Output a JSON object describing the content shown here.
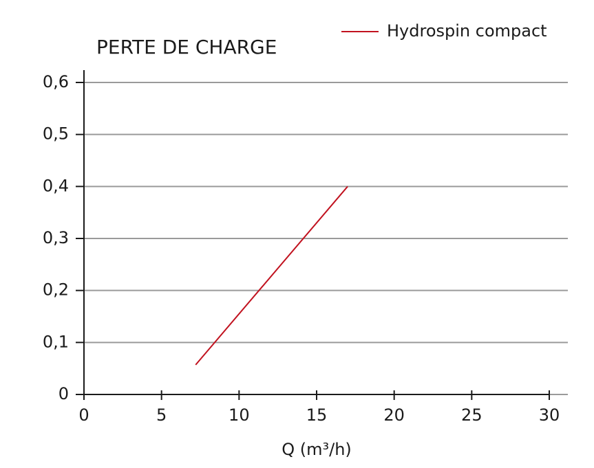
{
  "chart_data": {
    "type": "line",
    "title": "PERTE DE CHARGE",
    "x_label": "Q (m³/h)",
    "x": [
      7.2,
      17
    ],
    "series": [
      {
        "name": "Hydrospin compact",
        "color": "#c1121f",
        "values": [
          0.057,
          0.4
        ]
      }
    ],
    "xlim": [
      0,
      30
    ],
    "xticks": [
      0,
      5,
      10,
      15,
      20,
      25,
      30
    ],
    "ylim": [
      0,
      0.6
    ],
    "yticks": [
      0,
      {
        "value": 0.1,
        "label": "0,1"
      },
      {
        "value": 0.2,
        "label": "0,2"
      },
      {
        "value": 0.3,
        "label": "0,3"
      },
      {
        "value": 0.4,
        "label": "0,4"
      },
      {
        "value": 0.5,
        "label": "0,5"
      },
      {
        "value": 0.6,
        "label": "0,6"
      }
    ],
    "grid": true,
    "legend": "top-right"
  }
}
